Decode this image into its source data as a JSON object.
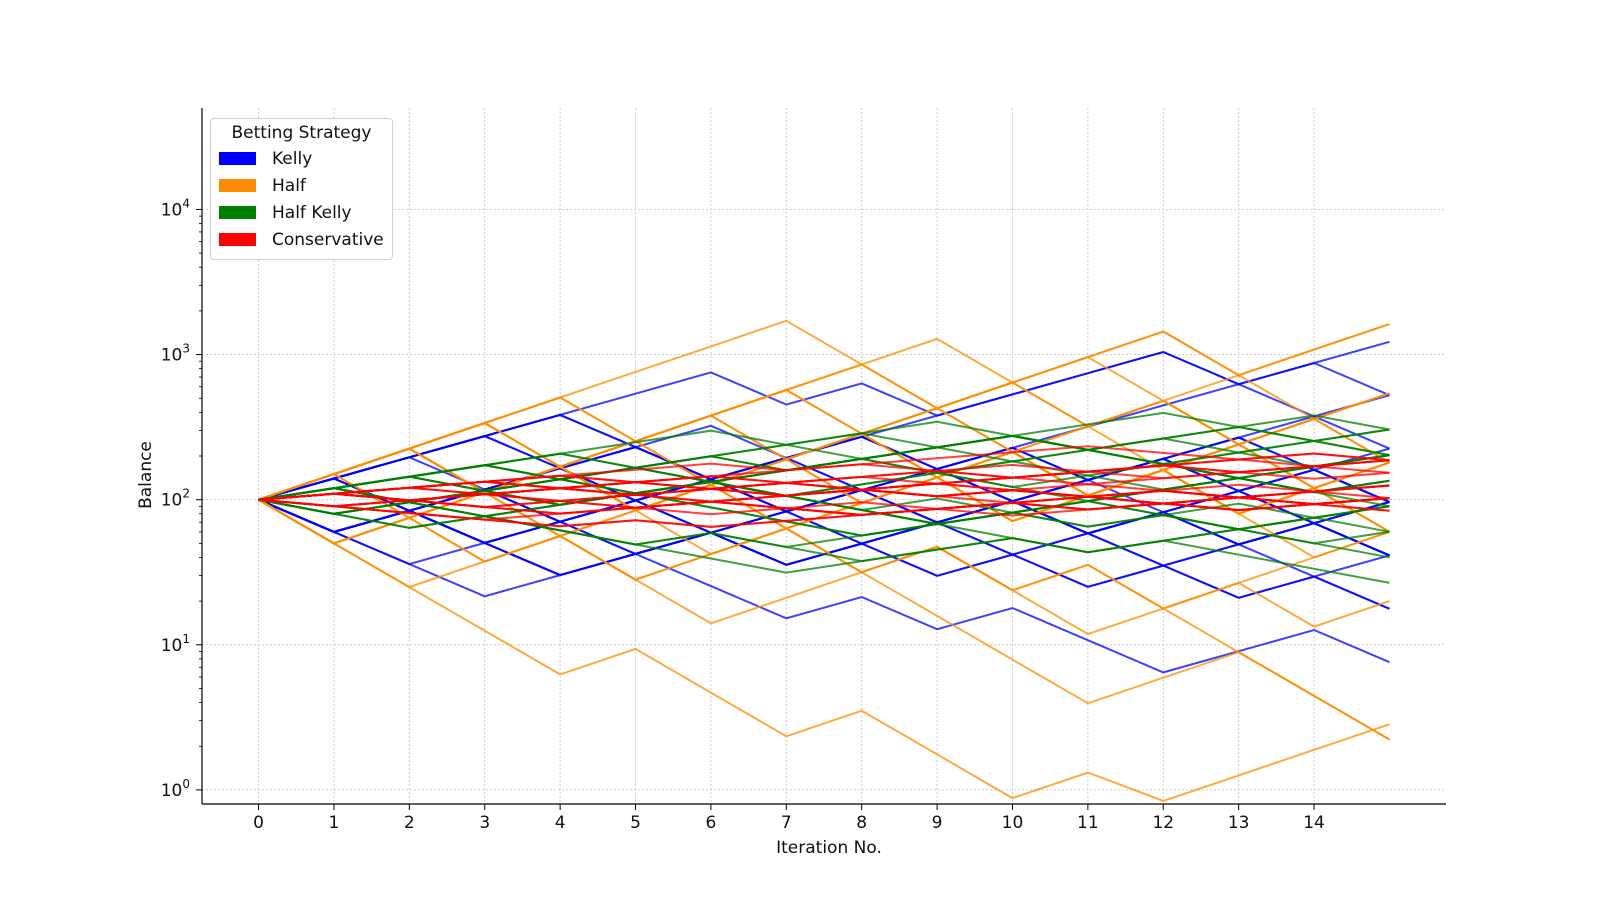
{
  "chart_data": {
    "type": "line",
    "title": "",
    "xlabel": "Iteration No.",
    "ylabel": "Balance",
    "yscale": "log",
    "ylim": [
      0.8,
      50000
    ],
    "xlim": [
      -0.75,
      15.75
    ],
    "xticks": [
      "0",
      "1",
      "2",
      "3",
      "4",
      "5",
      "6",
      "7",
      "8",
      "9",
      "10",
      "11",
      "12",
      "13",
      "14"
    ],
    "yticks": [
      {
        "base": "10",
        "exp": "0",
        "value": 1
      },
      {
        "base": "10",
        "exp": "1",
        "value": 10
      },
      {
        "base": "10",
        "exp": "2",
        "value": 100
      },
      {
        "base": "10",
        "exp": "3",
        "value": 1000
      },
      {
        "base": "10",
        "exp": "4",
        "value": 10000
      }
    ],
    "grid": true,
    "start_value": 100,
    "legend": {
      "title": "Betting Strategy",
      "placement": "top-left",
      "entries": [
        {
          "name": "Kelly",
          "color": "#0000ff"
        },
        {
          "name": "Half",
          "color": "#ff8c00"
        },
        {
          "name": "Half Kelly",
          "color": "#008000"
        },
        {
          "name": "Conservative",
          "color": "#ff0000"
        }
      ]
    },
    "series": [
      {
        "name": "Kelly",
        "color": "#0000ff",
        "up_factor": 1.4,
        "down_factor": 0.6,
        "n_paths": 20
      },
      {
        "name": "Half",
        "color": "#ff8c00",
        "up_factor": 1.5,
        "down_factor": 0.5,
        "n_paths": 20
      },
      {
        "name": "Half Kelly",
        "color": "#008000",
        "up_factor": 1.2,
        "down_factor": 0.8,
        "n_paths": 20
      },
      {
        "name": "Conservative",
        "color": "#ff0000",
        "up_factor": 1.1,
        "down_factor": 0.9,
        "n_paths": 20
      }
    ],
    "n_steps": 15
  }
}
